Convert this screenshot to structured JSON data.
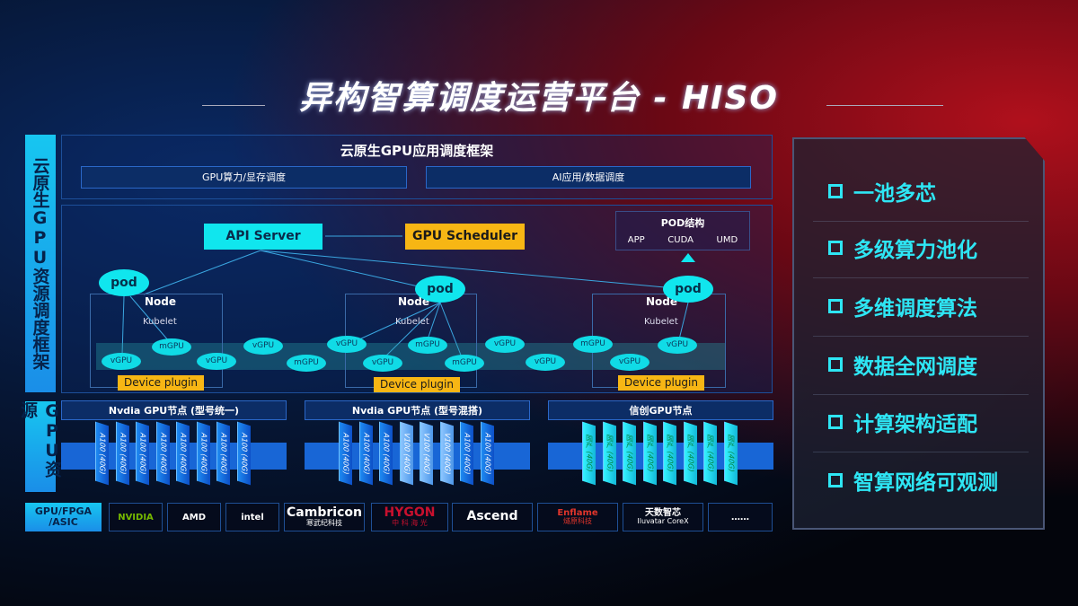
{
  "title": "异构智算调度运营平台 - HISO",
  "left_labels": {
    "framework": "云原生GPU资源调度框架",
    "resources": "GPU资源",
    "chips": "GPU/FPGA /ASIC"
  },
  "app_framework": {
    "title": "云原生GPU应用调度框架",
    "boxes": [
      "GPU算力/显存调度",
      "AI应用/数据调度"
    ]
  },
  "api_server": "API Server",
  "gpu_scheduler": "GPU Scheduler",
  "pod_structure": {
    "title": "POD结构",
    "items": [
      "APP",
      "CUDA",
      "UMD"
    ]
  },
  "pod_label": "pod",
  "node_label": "Node",
  "kubelet_label": "Kubelet",
  "device_plugin": "Device plugin",
  "virtual_gpus": [
    "vGPU",
    "mGPU",
    "vGPU",
    "vGPU",
    "mGPU",
    "vGPU",
    "vGPU",
    "mGPU",
    "mGPU",
    "vGPU",
    "vGPU",
    "mGPU",
    "vGPU",
    "vGPU"
  ],
  "gpu_groups": [
    {
      "title": "Nvdia GPU节点 (型号统一)",
      "chips": [
        "A100 (40G)",
        "A100 (40G)",
        "A100 (40G)",
        "A100 (40G)",
        "A100 (40G)",
        "A100 (40G)",
        "A100 (40G)",
        "A100 (40G)"
      ]
    },
    {
      "title": "Nvdia GPU节点 (型号混搭)",
      "chips": [
        "A100 (40G)",
        "A100 (40G)",
        "A100 (40G)",
        "V100 (40G)",
        "V100 (40G)",
        "V100 (40G)",
        "A100 (40G)",
        "A100 (40G)"
      ]
    },
    {
      "title": "信创GPU节点",
      "chips": [
        "国产 (40G)",
        "国产 (40G)",
        "国产 (40G)",
        "国产 (40G)",
        "国产 (40G)",
        "国产 (40G)",
        "国产 (40G)",
        "国产 (40G)"
      ]
    }
  ],
  "vendors": [
    {
      "name": "NVIDIA",
      "sub": "",
      "color": "#76b900"
    },
    {
      "name": "AMD",
      "sub": "",
      "color": "#ffffff"
    },
    {
      "name": "intel",
      "sub": "",
      "color": "#ffffff"
    },
    {
      "name": "Cambricon",
      "sub": "寒武纪科技",
      "color": "#ffffff"
    },
    {
      "name": "HYGON",
      "sub": "中 科 海 光",
      "color": "#c8102e"
    },
    {
      "name": "Ascend",
      "sub": "",
      "color": "#ffffff"
    },
    {
      "name": "Enflame",
      "sub": "燧原科技",
      "color": "#e0352b"
    },
    {
      "name": "天数智芯",
      "sub": "Iluvatar CoreX",
      "color": "#ffffff"
    },
    {
      "name": "……",
      "sub": "",
      "color": "#ffffff"
    }
  ],
  "features": [
    "一池多芯",
    "多级算力池化",
    "多维调度算法",
    "数据全网调度",
    "计算架构适配",
    "智算网络可观测"
  ],
  "colors": {
    "cyan": "#10e6ee",
    "orange": "#f7b614",
    "blue": "#1866d6"
  }
}
